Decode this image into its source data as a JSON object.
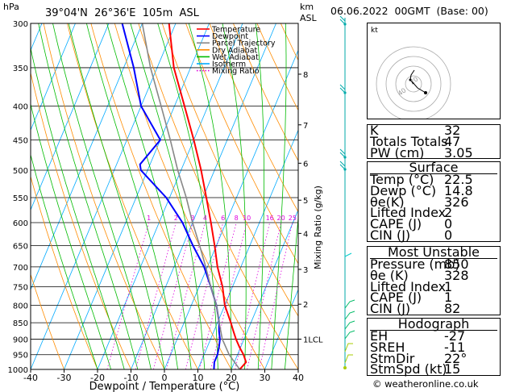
{
  "header": {
    "hpa_unit": "hPa",
    "km_unit": "km",
    "asl_unit": "ASL",
    "location": "39°04'N  26°36'E  105m  ASL",
    "date": "06.06.2022  00GMT  (Base: 00)"
  },
  "legend": {
    "items": [
      {
        "label": "Temperature",
        "color": "#ff0000",
        "style": "solid"
      },
      {
        "label": "Dewpoint",
        "color": "#0000ff",
        "style": "solid"
      },
      {
        "label": "Parcel Trajectory",
        "color": "#888888",
        "style": "solid"
      },
      {
        "label": "Dry Adiabat",
        "color": "#ff8c00",
        "style": "solid"
      },
      {
        "label": "Wet Adiabat",
        "color": "#00bb00",
        "style": "solid"
      },
      {
        "label": "Isotherm",
        "color": "#00aaff",
        "style": "solid"
      },
      {
        "label": "Mixing Ratio",
        "color": "#dd00dd",
        "style": "dotted"
      }
    ]
  },
  "chart_data": {
    "type": "line",
    "xlabel": "Dewpoint / Temperature (°C)",
    "ylabel_right": "Mixing Ratio (g/kg)",
    "x_ticks": [
      -40,
      -30,
      -20,
      -10,
      0,
      10,
      20,
      30,
      40
    ],
    "pressure_ticks": [
      300,
      350,
      400,
      450,
      500,
      550,
      600,
      650,
      700,
      750,
      800,
      850,
      900,
      950,
      1000
    ],
    "height_ticks": [
      {
        "label": "8",
        "p": 358
      },
      {
        "label": "7",
        "p": 427
      },
      {
        "label": "6",
        "p": 488
      },
      {
        "label": "5",
        "p": 555
      },
      {
        "label": "4",
        "p": 623
      },
      {
        "label": "3",
        "p": 706
      },
      {
        "label": "2",
        "p": 797
      },
      {
        "label": "1LCL",
        "p": 900
      }
    ],
    "mixing_ratio_labels": [
      "1",
      "2",
      "3",
      "4",
      "6",
      "8",
      "10",
      "16",
      "20",
      "25"
    ],
    "series": [
      {
        "name": "Temperature",
        "color": "#ff0000",
        "p": [
          1000,
          975,
          950,
          925,
          900,
          875,
          850,
          800,
          750,
          700,
          650,
          600,
          550,
          500,
          450,
          400,
          350,
          300
        ],
        "t": [
          22.5,
          23.5,
          21.8,
          19.6,
          17.6,
          15.8,
          14,
          10,
          7,
          3,
          -0.5,
          -4.5,
          -9,
          -14,
          -20,
          -27,
          -35,
          -42
        ]
      },
      {
        "name": "Dewpoint",
        "color": "#0000ff",
        "p": [
          1000,
          975,
          950,
          925,
          900,
          875,
          850,
          800,
          750,
          700,
          650,
          600,
          550,
          500,
          490,
          450,
          400,
          350,
          300
        ],
        "t": [
          14.8,
          14,
          14,
          13.5,
          12.8,
          11.5,
          10.5,
          7.5,
          3.5,
          -1,
          -7,
          -13,
          -21,
          -32,
          -33,
          -30,
          -40,
          -47,
          -56
        ]
      },
      {
        "name": "Parcel Trajectory",
        "color": "#888888",
        "p": [
          1000,
          950,
          900,
          850,
          800,
          750,
          700,
          650,
          600,
          550,
          500,
          450,
          400,
          350,
          300
        ],
        "t": [
          22.5,
          17.5,
          13.5,
          10.5,
          7.5,
          3.5,
          -0.5,
          -5,
          -10,
          -15,
          -21,
          -27,
          -34,
          -42,
          -50
        ]
      }
    ]
  },
  "indices": {
    "rows": [
      {
        "k": "K",
        "v": "32"
      },
      {
        "k": "Totals Totals",
        "v": "47"
      },
      {
        "k": "PW (cm)",
        "v": "3.05"
      }
    ]
  },
  "surface": {
    "title": "Surface",
    "rows": [
      {
        "k": "Temp (°C)",
        "v": "22.5"
      },
      {
        "k": "Dewp (°C)",
        "v": "14.8"
      },
      {
        "k": "θe(K)",
        "v": "326"
      },
      {
        "k": "Lifted Index",
        "v": "2"
      },
      {
        "k": "CAPE (J)",
        "v": "0"
      },
      {
        "k": "CIN (J)",
        "v": "0"
      }
    ]
  },
  "most_unstable": {
    "title": "Most Unstable",
    "rows": [
      {
        "k": "Pressure (mb)",
        "v": "850"
      },
      {
        "k": "θe (K)",
        "v": "328"
      },
      {
        "k": "Lifted Index",
        "v": "1"
      },
      {
        "k": "CAPE (J)",
        "v": "1"
      },
      {
        "k": "CIN (J)",
        "v": "82"
      }
    ]
  },
  "hodograph": {
    "panel_label": "kt",
    "ring_labels": [
      "20",
      "40"
    ],
    "title": "Hodograph",
    "rows": [
      {
        "k": "EH",
        "v": "-27"
      },
      {
        "k": "SREH",
        "v": "-11"
      },
      {
        "k": "StmDir",
        "v": "22°"
      },
      {
        "k": "StmSpd (kt)",
        "v": "15"
      }
    ]
  },
  "footer": "© weatheronline.co.uk"
}
